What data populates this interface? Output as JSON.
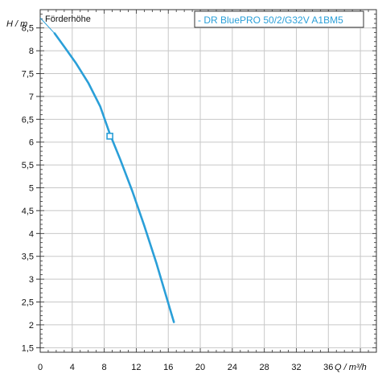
{
  "colors": {
    "curve": "#2a9fd8",
    "grid": "#c8c8c8",
    "frame": "#333333",
    "legend_text": "#2a9fd8"
  },
  "chart_data": {
    "type": "line",
    "title": "Förderhöhe",
    "xlabel": "Q / m³/h",
    "ylabel": "H / m",
    "x_unit_label": "Q / m³/h",
    "y_unit_label": "H / m",
    "xlim": [
      0,
      42
    ],
    "ylim": [
      1.4,
      8.9
    ],
    "x_ticks": [
      0,
      4,
      8,
      12,
      16,
      20,
      24,
      28,
      32,
      36
    ],
    "x_tick_labels": [
      "0",
      "4",
      "8",
      "12",
      "16",
      "20",
      "24",
      "28",
      "32",
      "36"
    ],
    "y_ticks": [
      1.5,
      2,
      2.5,
      3,
      3.5,
      4,
      4.5,
      5,
      5.5,
      6,
      6.5,
      7,
      7.5,
      8,
      8.5
    ],
    "y_tick_labels": [
      "1,5",
      "2",
      "2,5",
      "3",
      "3,5",
      "4",
      "4,5",
      "5",
      "5,5",
      "6",
      "6,5",
      "7",
      "7,5",
      "8",
      "8,5"
    ],
    "grid": true,
    "legend_position": "top-right",
    "series": [
      {
        "name": "DR BluePRO 50/2/G32V A1BM5",
        "legend_label": "- DR BluePRO 50/2/G32V A1BM5",
        "x": [
          1.8,
          3.0,
          4.5,
          6.0,
          7.5,
          8.7,
          10.0,
          11.5,
          13.0,
          14.5,
          15.8,
          16.7
        ],
        "y": [
          8.38,
          8.09,
          7.72,
          7.3,
          6.78,
          6.18,
          5.62,
          4.93,
          4.17,
          3.36,
          2.59,
          2.06
        ]
      }
    ],
    "extrapolated_segment": {
      "x": [
        0,
        1.8
      ],
      "y": [
        8.72,
        8.38
      ]
    },
    "operating_point": {
      "x": 8.7,
      "y": 6.13
    }
  }
}
